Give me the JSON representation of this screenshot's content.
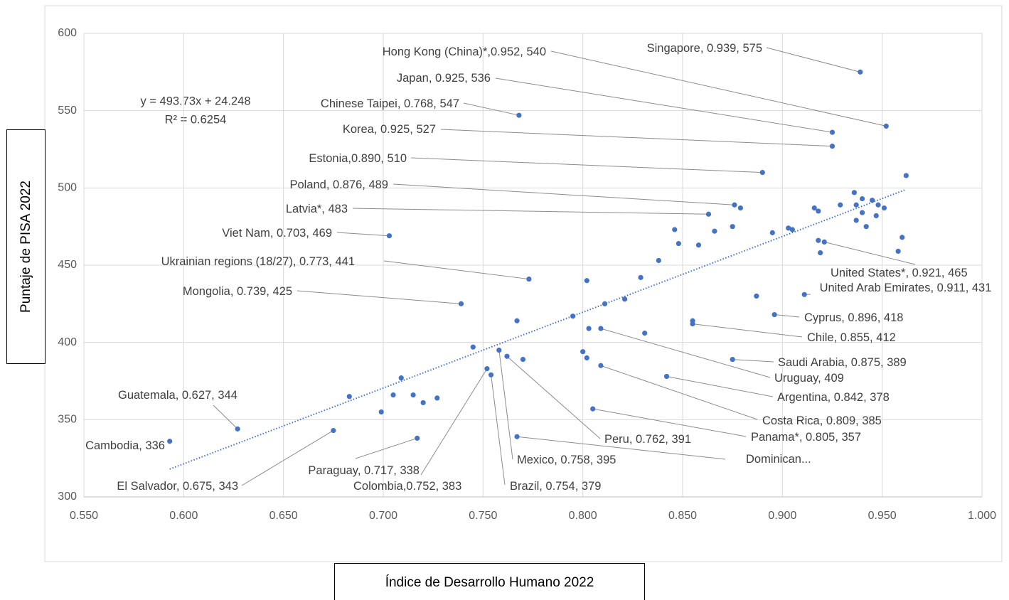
{
  "chart_data": {
    "type": "scatter",
    "xlabel": "Índice de Desarrollo Humano 2022",
    "ylabel": "Puntaje de PISA 2022",
    "equation": "y = 493.73x + 24.248",
    "r_squared": "R² = 0.6254",
    "color": "#4472c4",
    "grid": true,
    "xlim": [
      0.55,
      1.0
    ],
    "ylim": [
      300,
      600
    ],
    "xticks": [
      {
        "value": 0.55,
        "label": "0.550"
      },
      {
        "value": 0.6,
        "label": "0.600"
      },
      {
        "value": 0.65,
        "label": "0.650"
      },
      {
        "value": 0.7,
        "label": "0.700"
      },
      {
        "value": 0.75,
        "label": "0.750"
      },
      {
        "value": 0.8,
        "label": "0.800"
      },
      {
        "value": 0.85,
        "label": "0.850"
      },
      {
        "value": 0.9,
        "label": "0.900"
      },
      {
        "value": 0.95,
        "label": "0.950"
      },
      {
        "value": 1.0,
        "label": "1.000"
      }
    ],
    "yticks": [
      300,
      350,
      400,
      450,
      500,
      550,
      600
    ],
    "trendline": {
      "x": [
        0.593,
        0.962
      ],
      "values": [
        318,
        499
      ]
    },
    "x": [
      0.939,
      0.952,
      0.925,
      0.768,
      0.925,
      0.89,
      0.876,
      0.863,
      0.703,
      0.773,
      0.739,
      0.921,
      0.911,
      0.896,
      0.855,
      0.875,
      0.809,
      0.842,
      0.809,
      0.805,
      0.762,
      0.767,
      0.758,
      0.754,
      0.752,
      0.717,
      0.675,
      0.627,
      0.593,
      0.962,
      0.936,
      0.94,
      0.945,
      0.948,
      0.951,
      0.937,
      0.929,
      0.916,
      0.918,
      0.94,
      0.947,
      0.937,
      0.942,
      0.879,
      0.846,
      0.866,
      0.875,
      0.895,
      0.903,
      0.905,
      0.848,
      0.858,
      0.918,
      0.919,
      0.96,
      0.958,
      0.838,
      0.829,
      0.802,
      0.821,
      0.811,
      0.887,
      0.855,
      0.831,
      0.795,
      0.803,
      0.767,
      0.745,
      0.8,
      0.802,
      0.77,
      0.709,
      0.705,
      0.715,
      0.72,
      0.727,
      0.699,
      0.683
    ],
    "values": [
      575,
      540,
      536,
      547,
      527,
      510,
      489,
      483,
      469,
      441,
      425,
      465,
      431,
      418,
      412,
      389,
      409,
      378,
      385,
      357,
      391,
      339,
      395,
      379,
      383,
      338,
      343,
      344,
      336,
      508,
      497,
      493,
      492,
      489,
      487,
      489,
      489,
      487,
      485,
      484,
      482,
      479,
      475,
      487,
      473,
      472,
      475,
      471,
      474,
      473,
      464,
      463,
      466,
      458,
      468,
      459,
      453,
      442,
      440,
      428,
      425,
      430,
      414,
      406,
      417,
      409,
      414,
      397,
      394,
      390,
      389,
      377,
      366,
      366,
      361,
      364,
      355,
      365
    ],
    "point_labels": [
      "Singapore, 0.939, 575",
      "Hong Kong (China)*,0.952, 540",
      "Japan, 0.925, 536",
      "Chinese Taipei, 0.768, 547",
      "Korea, 0.925, 527",
      "Estonia,0.890, 510",
      "Poland, 0.876, 489",
      "Latvia*, 483",
      "Viet Nam, 0.703, 469",
      "Ukrainian regions (18/27), 0.773, 441",
      "Mongolia, 0.739, 425",
      "United States*, 0.921, 465",
      "United Arab Emirates, 0.911, 431",
      "Cyprus, 0.896, 418",
      "Chile, 0.855, 412",
      "Saudi Arabia, 0.875, 389",
      "Uruguay, 409",
      "Argentina, 0.842, 378",
      "Costa Rica, 0.809, 385",
      "Panama*, 0.805, 357",
      "Peru, 0.762, 391",
      "Dominican...",
      "Mexico, 0.758, 395",
      "Brazil, 0.754, 379",
      "Colombia,0.752, 383",
      "Paraguay, 0.717, 338",
      "El Salvador, 0.675, 343",
      "Guatemala, 0.627, 344",
      "Cambodia, 336",
      null,
      null,
      null,
      null,
      null,
      null,
      null,
      null,
      null,
      null,
      null,
      null,
      null,
      null,
      null,
      null,
      null,
      null,
      null,
      null,
      null,
      null,
      null,
      null,
      null,
      null,
      null,
      null,
      null,
      null,
      null,
      null,
      null,
      null,
      null,
      null,
      null,
      null,
      null,
      null,
      null,
      null,
      null,
      null,
      null,
      null,
      null,
      null,
      null
    ]
  }
}
